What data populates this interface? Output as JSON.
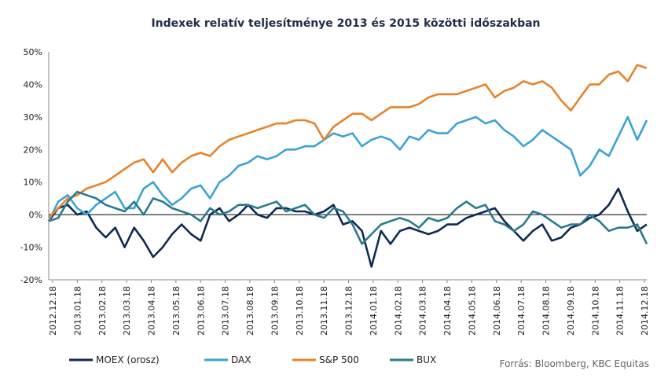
{
  "chart_data": {
    "type": "line",
    "title": "Indexek relatív teljesítménye 2013 és 2015 közötti időszakban",
    "xlabel": "",
    "ylabel": "",
    "ylim": [
      -20,
      50
    ],
    "yticks": [
      -20,
      -10,
      0,
      10,
      20,
      30,
      40,
      50
    ],
    "ytick_labels": [
      "-20%",
      "-10%",
      "0%",
      "10%",
      "20%",
      "30%",
      "40%",
      "50%"
    ],
    "x_tick_labels": [
      "2012.12.18",
      "2013.01.18",
      "2013.02.18",
      "2013.03.18",
      "2013.04.18",
      "2013.05.18",
      "2013.06.18",
      "2013.07.18",
      "2013.08.18",
      "2013.09.18",
      "2013.10.18",
      "2013.11.18",
      "2013.12.18",
      "2014.01.18",
      "2014.02.18",
      "2014.03.18",
      "2014.04.18",
      "2014.05.18",
      "2014.06.18",
      "2014.07.18",
      "2014.08.18",
      "2014.09.18",
      "2014.10.18",
      "2014.11.18",
      "2014.12.18"
    ],
    "grid": false,
    "legend_position": "bottom",
    "source": "Forrás: Bloomberg, KBC Equitas",
    "series": [
      {
        "name": "MOEX (orosz)",
        "color": "#0f2a52",
        "values": [
          -2,
          2,
          3,
          0,
          1,
          -4,
          -7,
          -4,
          -10,
          -4,
          -8,
          -13,
          -10,
          -6,
          -3,
          -6,
          -8,
          0,
          2,
          -2,
          0,
          3,
          0,
          -1,
          2,
          2,
          1,
          1,
          0,
          1,
          3,
          -3,
          -2,
          -5,
          -16,
          -5,
          -9,
          -5,
          -4,
          -5,
          -6,
          -5,
          -3,
          -3,
          -1,
          0,
          1,
          2,
          -2,
          -5,
          -8,
          -5,
          -3,
          -8,
          -7,
          -4,
          -3,
          -1,
          0,
          3,
          8,
          1,
          -5,
          -3
        ]
      },
      {
        "name": "DAX",
        "color": "#3ba3d4",
        "values": [
          -2,
          4,
          6,
          2,
          0,
          3,
          5,
          7,
          2,
          2,
          8,
          10,
          6,
          3,
          5,
          8,
          9,
          5,
          10,
          12,
          15,
          16,
          18,
          17,
          18,
          20,
          20,
          21,
          21,
          23,
          25,
          24,
          25,
          21,
          23,
          24,
          23,
          20,
          24,
          23,
          26,
          25,
          25,
          28,
          29,
          30,
          28,
          29,
          26,
          24,
          21,
          23,
          26,
          24,
          22,
          20,
          12,
          15,
          20,
          18,
          24,
          30,
          23,
          29
        ]
      },
      {
        "name": "S&P 500",
        "color": "#e8822a",
        "values": [
          -1,
          2,
          5,
          6,
          8,
          9,
          10,
          12,
          14,
          16,
          17,
          13,
          17,
          13,
          16,
          18,
          19,
          18,
          21,
          23,
          24,
          25,
          26,
          27,
          28,
          28,
          29,
          29,
          28,
          23,
          27,
          29,
          31,
          31,
          29,
          31,
          33,
          33,
          33,
          34,
          36,
          37,
          37,
          37,
          38,
          39,
          40,
          36,
          38,
          39,
          41,
          40,
          41,
          39,
          35,
          32,
          36,
          40,
          40,
          43,
          44,
          41,
          46,
          45
        ]
      },
      {
        "name": "BUX",
        "color": "#2a7a8c",
        "values": [
          -2,
          -1,
          4,
          7,
          6,
          5,
          3,
          2,
          1,
          4,
          0,
          5,
          4,
          2,
          1,
          0,
          -2,
          2,
          0,
          1,
          3,
          3,
          2,
          3,
          4,
          1,
          2,
          3,
          0,
          -1,
          2,
          1,
          -3,
          -9,
          -6,
          -3,
          -2,
          -1,
          -2,
          -4,
          -1,
          -2,
          -1,
          2,
          4,
          2,
          3,
          -2,
          -3,
          -5,
          -3,
          1,
          0,
          -2,
          -4,
          -3,
          -3,
          0,
          -2,
          -5,
          -4,
          -4,
          -3,
          -9
        ]
      }
    ]
  }
}
